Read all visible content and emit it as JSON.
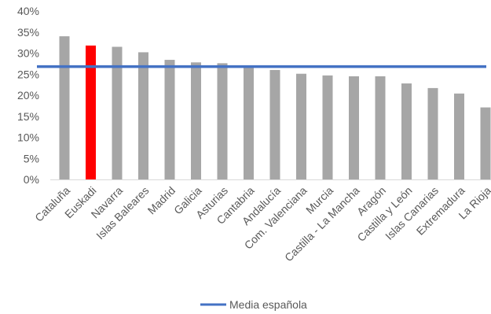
{
  "colors": {
    "bar": "#a6a6a6",
    "highlight_bar": "#ff0000",
    "average_line": "#4472c4",
    "axis": "#d9d9d9",
    "text": "#595959"
  },
  "chart_data": {
    "type": "bar",
    "categories": [
      "Cataluña",
      "Euskadi",
      "Navarra",
      "Islas Baleares",
      "Madrid",
      "Galicia",
      "Asturias",
      "Cantabria",
      "Andalucía",
      "Com. Valenciana",
      "Murcia",
      "Castilla - La Mancha",
      "Aragón",
      "Castilla y León",
      "Islas Canarias",
      "Extremadura",
      "La Rioja"
    ],
    "values": [
      34.0,
      31.8,
      31.5,
      30.2,
      28.4,
      27.8,
      27.6,
      27.0,
      26.0,
      25.1,
      24.7,
      24.5,
      24.5,
      22.8,
      21.7,
      20.4,
      17.1
    ],
    "highlight_index": 1,
    "series": [
      {
        "name": "Media española",
        "type": "line",
        "value": 26.8
      }
    ],
    "ylim": [
      0,
      40
    ],
    "yticks": [
      0,
      5,
      10,
      15,
      20,
      25,
      30,
      35,
      40
    ],
    "ytick_format": "percent",
    "ytick_labels": [
      "0%",
      "5%",
      "10%",
      "15%",
      "20%",
      "25%",
      "30%",
      "35%",
      "40%"
    ],
    "grid": false,
    "legend_position": "bottom",
    "legend_label": "Media española",
    "title": "",
    "xlabel": "",
    "ylabel": ""
  }
}
